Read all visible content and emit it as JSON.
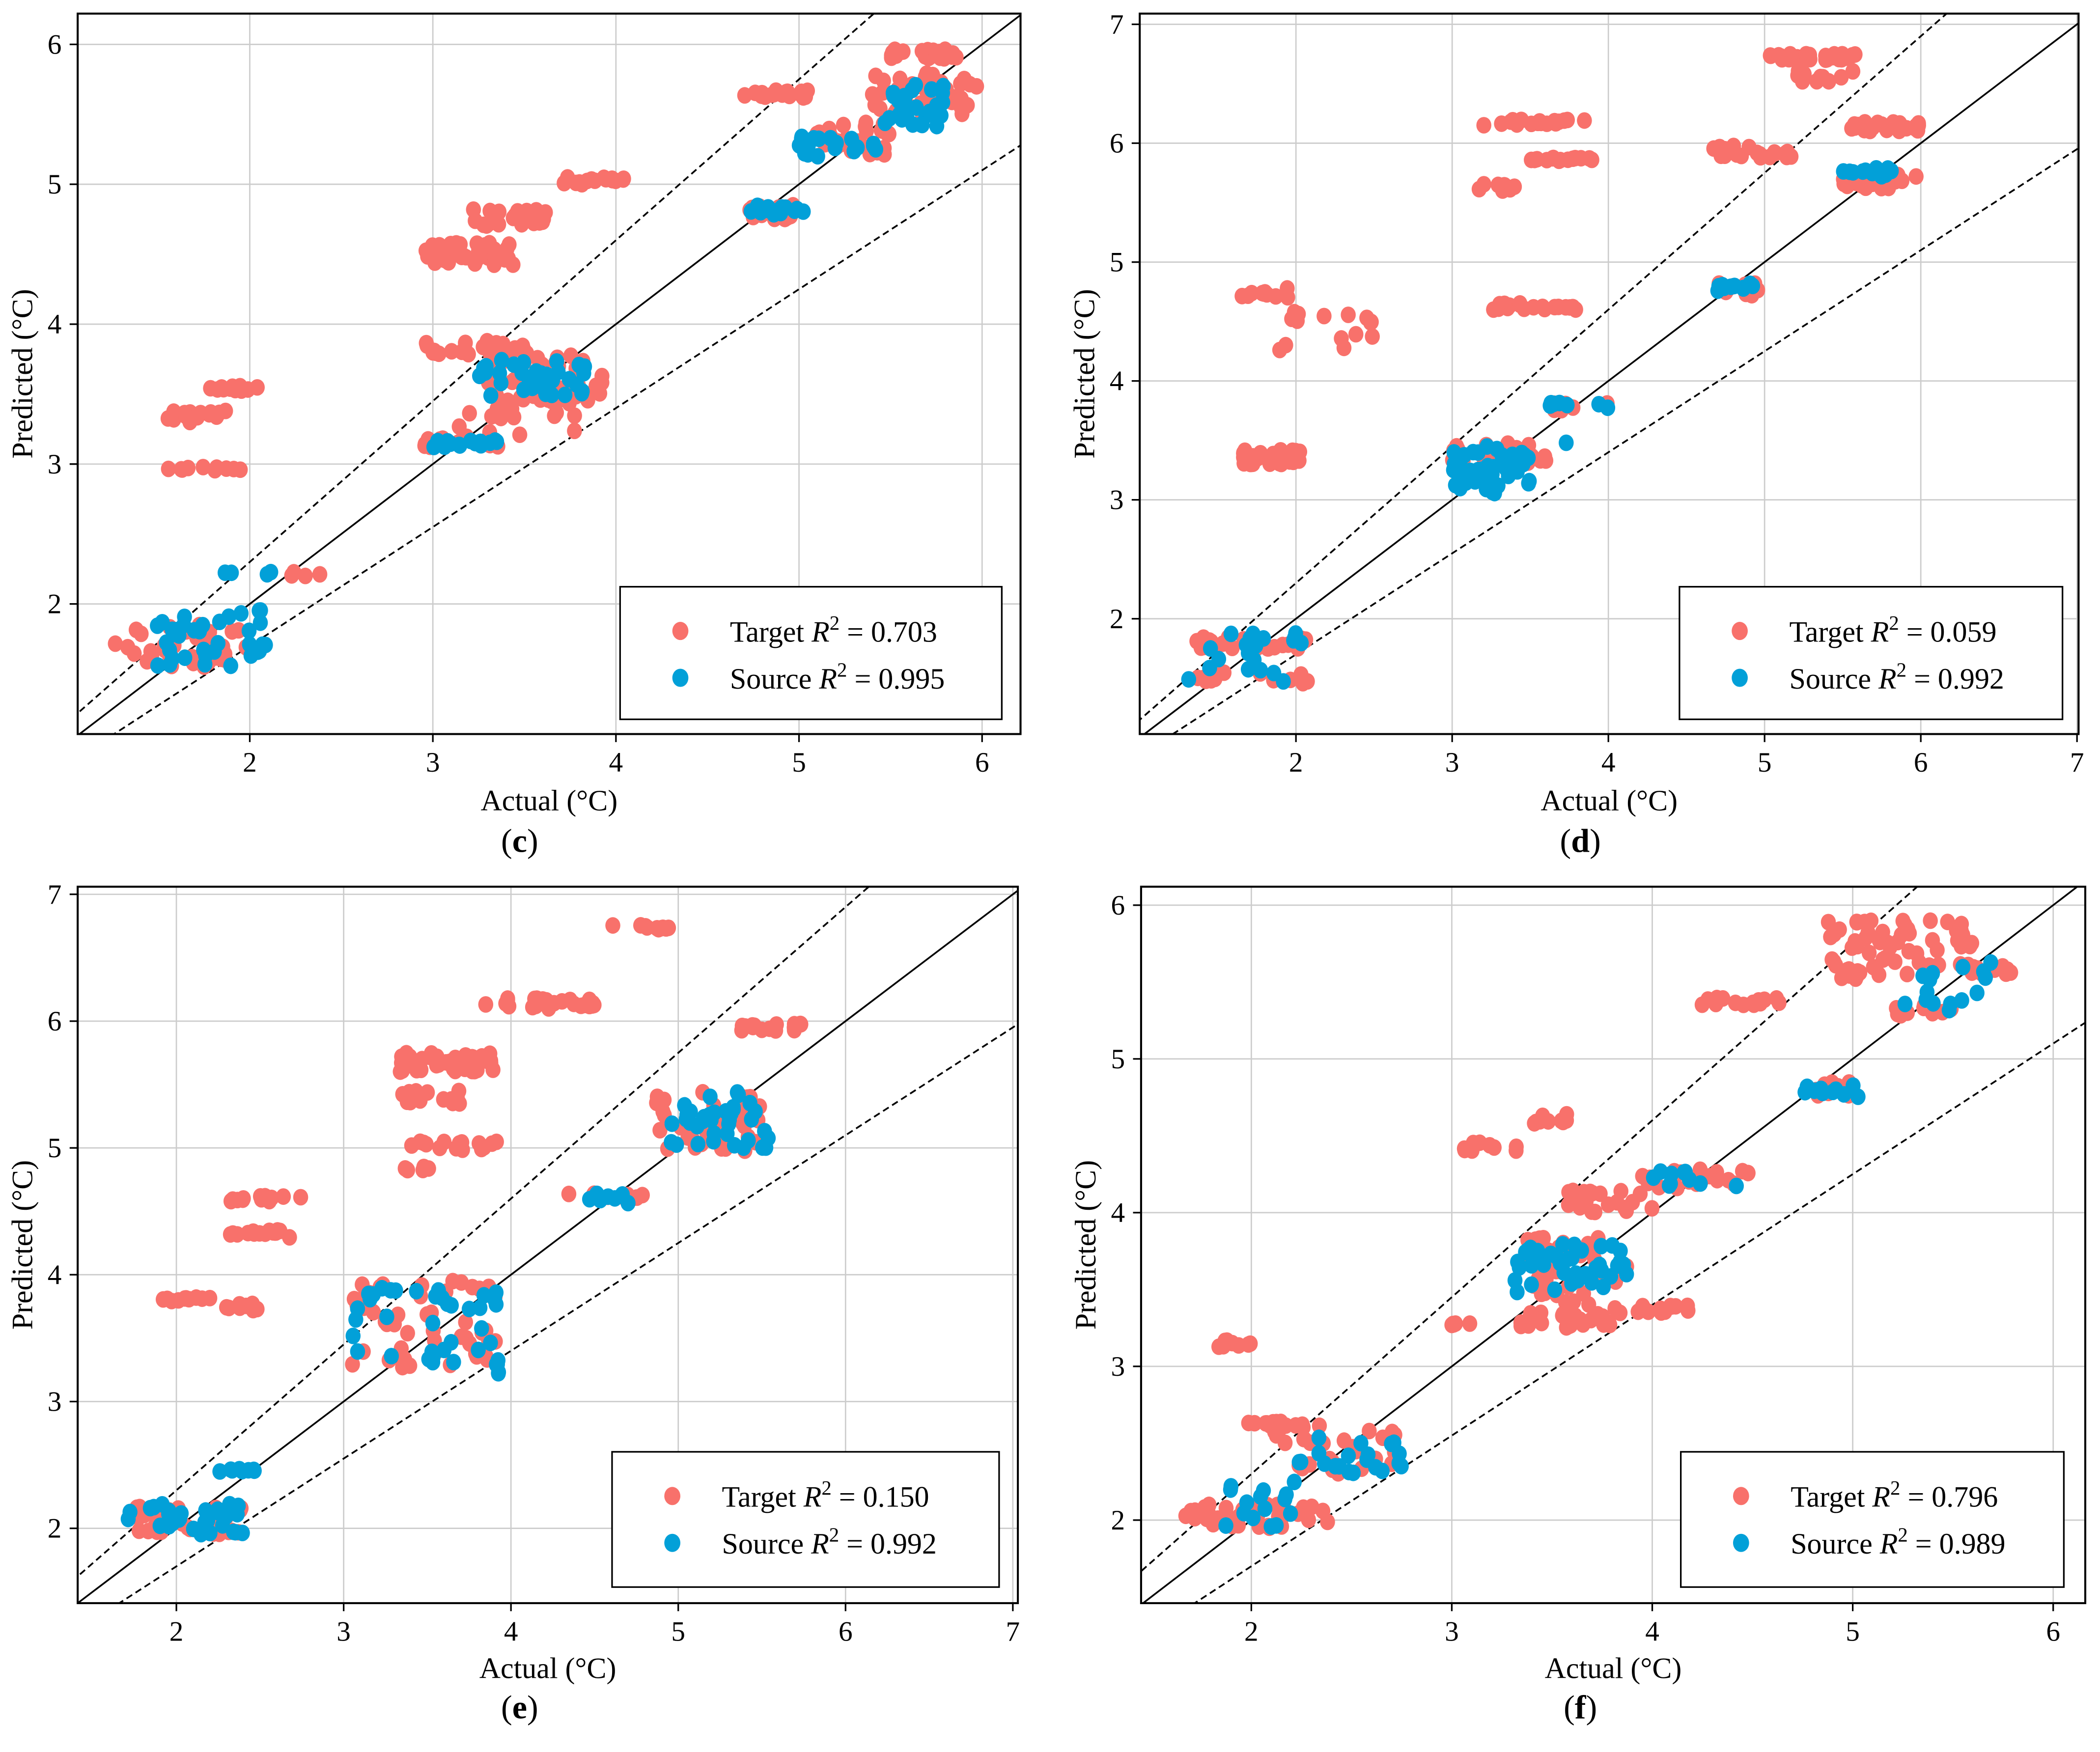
{
  "colors": {
    "target": "#f8716b",
    "source": "#02a0d8",
    "grid": "#cccccc"
  },
  "chart_data": [
    {
      "type": "scatter",
      "label": "(c)",
      "label_letter": "c",
      "xlabel": "Actual (°C)",
      "ylabel": "Predicted (°C)",
      "xlim": [
        1.06,
        6.21
      ],
      "ylim": [
        1.07,
        6.22
      ],
      "xticks": [
        2,
        3,
        4,
        5,
        6
      ],
      "yticks": [
        2,
        3,
        4,
        5,
        6
      ],
      "reference_slopes": {
        "identity": 1,
        "upper": 1.15,
        "lower": 0.85
      },
      "legend_position": "bottom-right",
      "series": [
        {
          "name": "Target",
          "r2": "0.703",
          "clusters": [
            [
              1.25,
              2.0,
              1.55,
              1.85,
              40
            ],
            [
              1.55,
              1.95,
              2.94,
              2.98,
              10
            ],
            [
              1.55,
              1.95,
              3.3,
              3.38,
              15
            ],
            [
              1.75,
              2.05,
              3.52,
              3.56,
              12
            ],
            [
              2.2,
              2.5,
              2.2,
              2.23,
              4
            ],
            [
              2.95,
              3.45,
              4.42,
              4.58,
              40
            ],
            [
              3.2,
              3.7,
              4.7,
              4.82,
              25
            ],
            [
              3.7,
              4.05,
              5.0,
              5.05,
              15
            ],
            [
              2.95,
              3.5,
              3.78,
              3.88,
              25
            ],
            [
              2.95,
              3.4,
              3.12,
              3.2,
              15
            ],
            [
              3.1,
              3.8,
              3.2,
              3.5,
              20
            ],
            [
              3.3,
              3.95,
              3.45,
              3.8,
              40
            ],
            [
              4.7,
              5.0,
              4.75,
              4.85,
              20
            ],
            [
              4.7,
              5.05,
              5.62,
              5.67,
              20
            ],
            [
              5.05,
              5.5,
              5.2,
              5.45,
              30
            ],
            [
              5.4,
              5.95,
              5.5,
              5.8,
              40
            ],
            [
              5.5,
              5.9,
              5.9,
              5.97,
              25
            ],
            [
              5.97,
              5.97,
              5.7,
              5.7,
              1
            ]
          ]
        },
        {
          "name": "Source",
          "r2": "0.995",
          "clusters": [
            [
              1.45,
              2.1,
              1.55,
              1.95,
              35
            ],
            [
              1.85,
              2.25,
              2.2,
              2.23,
              4
            ],
            [
              2.05,
              2.1,
              1.95,
              1.97,
              2
            ],
            [
              3.0,
              3.35,
              3.12,
              3.17,
              15
            ],
            [
              3.25,
              3.85,
              3.48,
              3.75,
              40
            ],
            [
              4.7,
              5.05,
              4.78,
              4.85,
              15
            ],
            [
              5.0,
              5.45,
              5.2,
              5.35,
              20
            ],
            [
              5.4,
              5.8,
              5.4,
              5.72,
              30
            ]
          ]
        }
      ]
    },
    {
      "type": "scatter",
      "label": "(d)",
      "label_letter": "d",
      "xlabel": "Actual (°C)",
      "ylabel": "Predicted (°C)",
      "xlim": [
        1.0,
        7.01
      ],
      "ylim": [
        1.03,
        7.09
      ],
      "xticks": [
        2,
        3,
        4,
        5,
        6,
        7
      ],
      "yticks": [
        2,
        3,
        4,
        5,
        6,
        7
      ],
      "reference_slopes": {
        "identity": 1,
        "upper": 1.15,
        "lower": 0.85
      },
      "legend_position": "bottom-right",
      "series": [
        {
          "name": "Target",
          "r2": "0.059",
          "clusters": [
            [
              1.35,
              2.1,
              1.45,
              1.55,
              15
            ],
            [
              1.35,
              2.1,
              1.75,
              1.85,
              25
            ],
            [
              1.65,
              2.05,
              3.3,
              3.42,
              35
            ],
            [
              1.65,
              2.0,
              4.7,
              4.78,
              10
            ],
            [
              1.8,
              2.5,
              4.25,
              4.58,
              15
            ],
            [
              2.95,
              3.6,
              3.3,
              3.48,
              40
            ],
            [
              3.1,
              3.4,
              5.6,
              5.66,
              10
            ],
            [
              3.5,
              3.9,
              5.85,
              5.88,
              15
            ],
            [
              3.2,
              3.85,
              6.15,
              6.2,
              20
            ],
            [
              3.2,
              3.8,
              4.6,
              4.66,
              20
            ],
            [
              3.6,
              4.0,
              3.75,
              3.82,
              8
            ],
            [
              4.65,
              5.2,
              5.88,
              5.98,
              20
            ],
            [
              4.65,
              5.0,
              4.72,
              4.82,
              12
            ],
            [
              5.0,
              5.6,
              6.7,
              6.75,
              25
            ],
            [
              5.2,
              5.6,
              6.52,
              6.62,
              10
            ],
            [
              5.5,
              6.0,
              6.1,
              6.18,
              25
            ],
            [
              5.5,
              5.9,
              5.62,
              5.75,
              30
            ],
            [
              5.97,
              5.97,
              5.72,
              5.72,
              1
            ]
          ]
        },
        {
          "name": "Source",
          "r2": "0.992",
          "clusters": [
            [
              1.3,
              2.05,
              1.45,
              1.9,
              20
            ],
            [
              3.0,
              3.5,
              3.05,
              3.45,
              50
            ],
            [
              3.6,
              4.0,
              3.77,
              3.82,
              8
            ],
            [
              3.73,
              3.73,
              3.48,
              3.48,
              1
            ],
            [
              4.7,
              4.95,
              4.75,
              4.82,
              10
            ],
            [
              5.5,
              5.85,
              5.7,
              5.8,
              15
            ]
          ]
        }
      ]
    },
    {
      "type": "scatter",
      "label": "(e)",
      "label_letter": "e",
      "xlabel": "Actual (°C)",
      "ylabel": "Predicted (°C)",
      "xlim": [
        1.41,
        7.03
      ],
      "ylim": [
        1.41,
        7.06
      ],
      "xticks": [
        2,
        3,
        4,
        5,
        6,
        7
      ],
      "yticks": [
        2,
        3,
        4,
        5,
        6,
        7
      ],
      "reference_slopes": {
        "identity": 1,
        "upper": 1.15,
        "lower": 0.85
      },
      "legend_position": "bottom-right",
      "series": [
        {
          "name": "Target",
          "r2": "0.150",
          "clusters": [
            [
              1.7,
              2.4,
              1.95,
              2.2,
              30
            ],
            [
              1.9,
              2.3,
              3.79,
              3.82,
              10
            ],
            [
              2.3,
              2.6,
              3.72,
              3.77,
              8
            ],
            [
              2.3,
              2.7,
              4.28,
              4.35,
              15
            ],
            [
              2.3,
              2.75,
              4.58,
              4.62,
              12
            ],
            [
              3.05,
              3.95,
              3.25,
              3.95,
              50
            ],
            [
              3.3,
              3.9,
              5.6,
              5.75,
              40
            ],
            [
              3.35,
              3.7,
              5.35,
              5.45,
              15
            ],
            [
              3.35,
              4.0,
              4.98,
              5.05,
              15
            ],
            [
              3.35,
              3.6,
              4.81,
              4.85,
              6
            ],
            [
              3.8,
              4.5,
              6.1,
              6.18,
              25
            ],
            [
              4.6,
              4.95,
              6.72,
              6.76,
              10
            ],
            [
              4.3,
              4.8,
              4.6,
              4.65,
              10
            ],
            [
              4.85,
              5.5,
              4.95,
              5.45,
              40
            ],
            [
              5.35,
              5.75,
              5.92,
              5.98,
              15
            ]
          ]
        },
        {
          "name": "Source",
          "r2": "0.992",
          "clusters": [
            [
              1.7,
              2.4,
              1.95,
              2.2,
              35
            ],
            [
              2.25,
              2.7,
              2.44,
              2.47,
              8
            ],
            [
              3.05,
              3.95,
              3.22,
              3.9,
              40
            ],
            [
              4.45,
              4.7,
              4.55,
              4.65,
              8
            ],
            [
              4.95,
              5.55,
              5.0,
              5.45,
              40
            ]
          ]
        }
      ]
    },
    {
      "type": "scatter",
      "label": "(f)",
      "label_letter": "f",
      "xlabel": "Actual (°C)",
      "ylabel": "Predicted (°C)",
      "xlim": [
        1.45,
        6.16
      ],
      "ylim": [
        1.46,
        6.12
      ],
      "xticks": [
        2,
        3,
        4,
        5,
        6
      ],
      "yticks": [
        2,
        3,
        4,
        5,
        6
      ],
      "reference_slopes": {
        "identity": 1,
        "upper": 1.15,
        "lower": 0.85
      },
      "legend_position": "bottom-right",
      "series": [
        {
          "name": "Target",
          "r2": "0.796",
          "clusters": [
            [
              1.65,
              2.4,
              1.95,
              2.1,
              40
            ],
            [
              1.8,
              2.0,
              3.12,
              3.18,
              8
            ],
            [
              1.85,
              2.35,
              2.6,
              2.64,
              15
            ],
            [
              2.1,
              2.75,
              2.3,
              2.6,
              25
            ],
            [
              3.0,
              3.2,
              3.25,
              3.28,
              5
            ],
            [
              3.05,
              3.35,
              4.4,
              4.46,
              10
            ],
            [
              3.4,
              3.6,
              4.58,
              4.64,
              10
            ],
            [
              3.3,
              3.8,
              3.25,
              3.35,
              25
            ],
            [
              3.35,
              3.9,
              3.4,
              3.85,
              40
            ],
            [
              3.8,
              4.2,
              3.34,
              3.4,
              15
            ],
            [
              3.55,
              4.0,
              4.0,
              4.15,
              20
            ],
            [
              3.95,
              4.5,
              4.15,
              4.28,
              20
            ],
            [
              4.2,
              4.65,
              5.35,
              5.4,
              15
            ],
            [
              4.8,
              5.0,
              4.75,
              4.85,
              10
            ],
            [
              4.85,
              5.15,
              5.5,
              5.9,
              30
            ],
            [
              5.15,
              5.6,
              5.55,
              5.9,
              30
            ],
            [
              5.2,
              5.5,
              5.28,
              5.35,
              12
            ],
            [
              5.5,
              5.8,
              5.55,
              5.62,
              12
            ]
          ]
        },
        {
          "name": "Source",
          "r2": "0.989",
          "clusters": [
            [
              1.85,
              2.25,
              1.95,
              2.25,
              15
            ],
            [
              2.2,
              2.75,
              2.3,
              2.55,
              20
            ],
            [
              3.3,
              3.9,
              3.45,
              3.8,
              40
            ],
            [
              4.0,
              4.45,
              4.17,
              4.27,
              10
            ],
            [
              4.75,
              5.05,
              4.75,
              4.83,
              10
            ],
            [
              5.2,
              5.7,
              5.3,
              5.65,
              15
            ]
          ]
        }
      ]
    }
  ]
}
